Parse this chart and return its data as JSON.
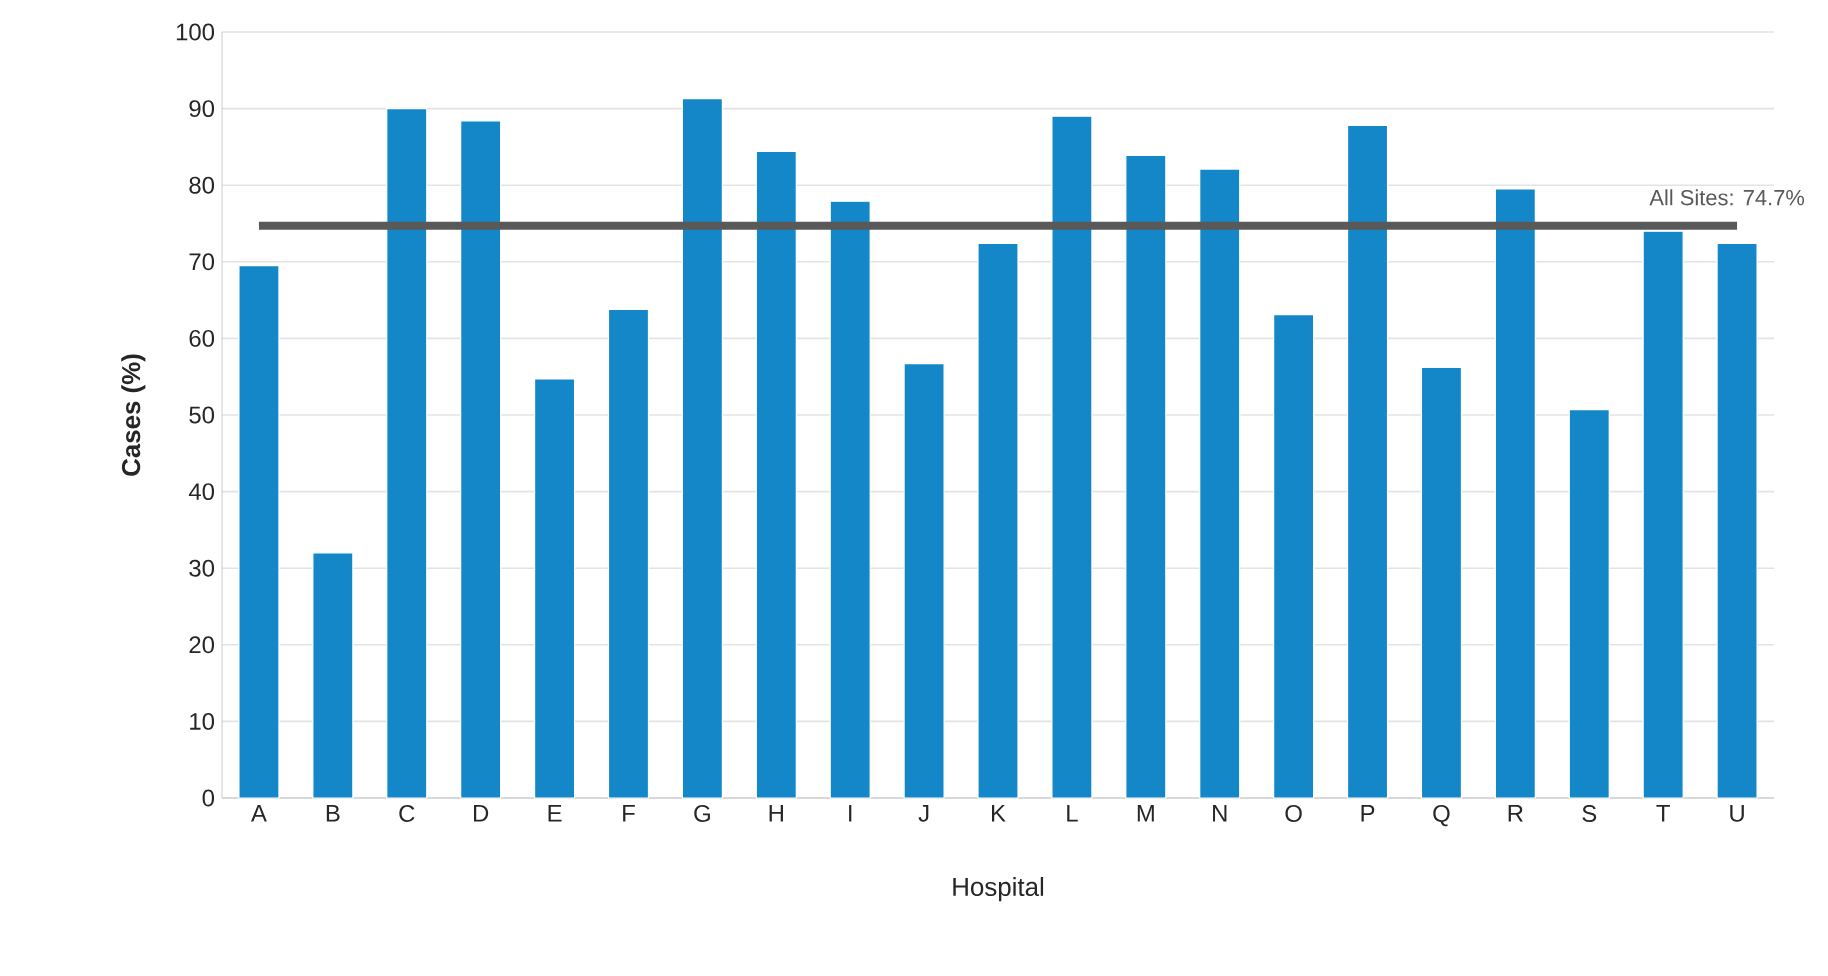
{
  "chart_data": {
    "type": "bar",
    "xlabel": "Hospital",
    "ylabel": "Cases (%)",
    "categories": [
      "A",
      "B",
      "C",
      "D",
      "E",
      "F",
      "G",
      "H",
      "I",
      "J",
      "K",
      "L",
      "M",
      "N",
      "O",
      "P",
      "Q",
      "R",
      "S",
      "T",
      "U"
    ],
    "values": [
      69.5,
      32,
      90,
      88.4,
      54.7,
      63.8,
      91.3,
      84.4,
      77.9,
      56.7,
      72.4,
      89,
      83.9,
      82.1,
      63.1,
      87.8,
      56.2,
      79.5,
      50.7,
      74,
      72.4
    ],
    "color": "#1487c8",
    "ylim": [
      0,
      100
    ],
    "yticks": [
      0,
      10,
      20,
      30,
      40,
      50,
      60,
      70,
      80,
      90,
      100
    ],
    "grid": "y",
    "ref_lines": [
      {
        "axis": "y",
        "value": 74.7,
        "label": "All Sites: 74.7%",
        "color": "#595959"
      }
    ]
  }
}
